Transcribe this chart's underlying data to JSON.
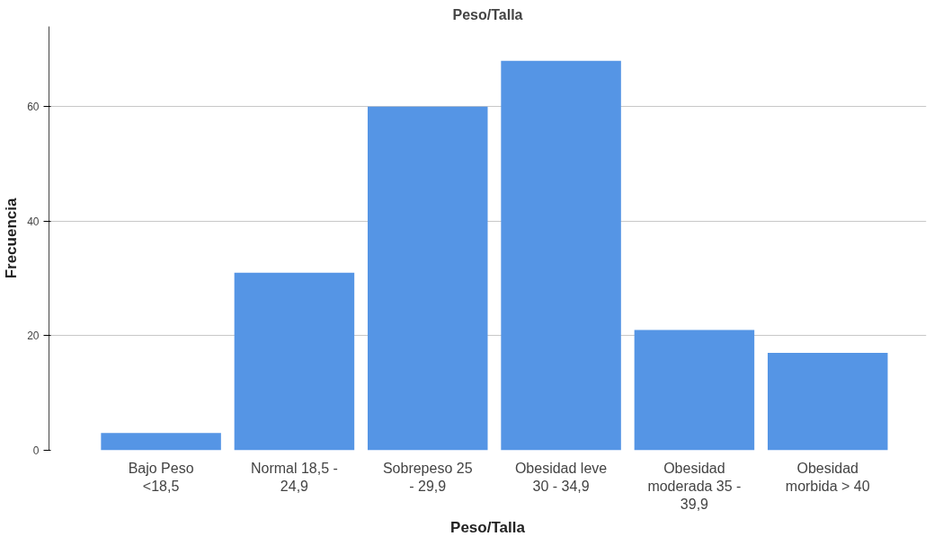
{
  "chart_data": {
    "type": "bar",
    "title": "Peso/Talla",
    "xlabel": "Peso/Talla",
    "ylabel": "Frecuencia",
    "categories": [
      "Bajo Peso <18,5",
      "Normal 18,5 - 24,9",
      "Sobrepeso 25 - 29,9",
      "Obesidad leve 30 - 34,9",
      "Obesidad moderada 35 - 39,9",
      "Obesidad morbida > 40"
    ],
    "values": [
      3,
      31,
      60,
      68,
      21,
      17
    ],
    "color": "#5595e5",
    "ylim": [
      0,
      74
    ],
    "yticks": [
      0,
      20,
      40,
      60
    ],
    "grid": "y"
  }
}
